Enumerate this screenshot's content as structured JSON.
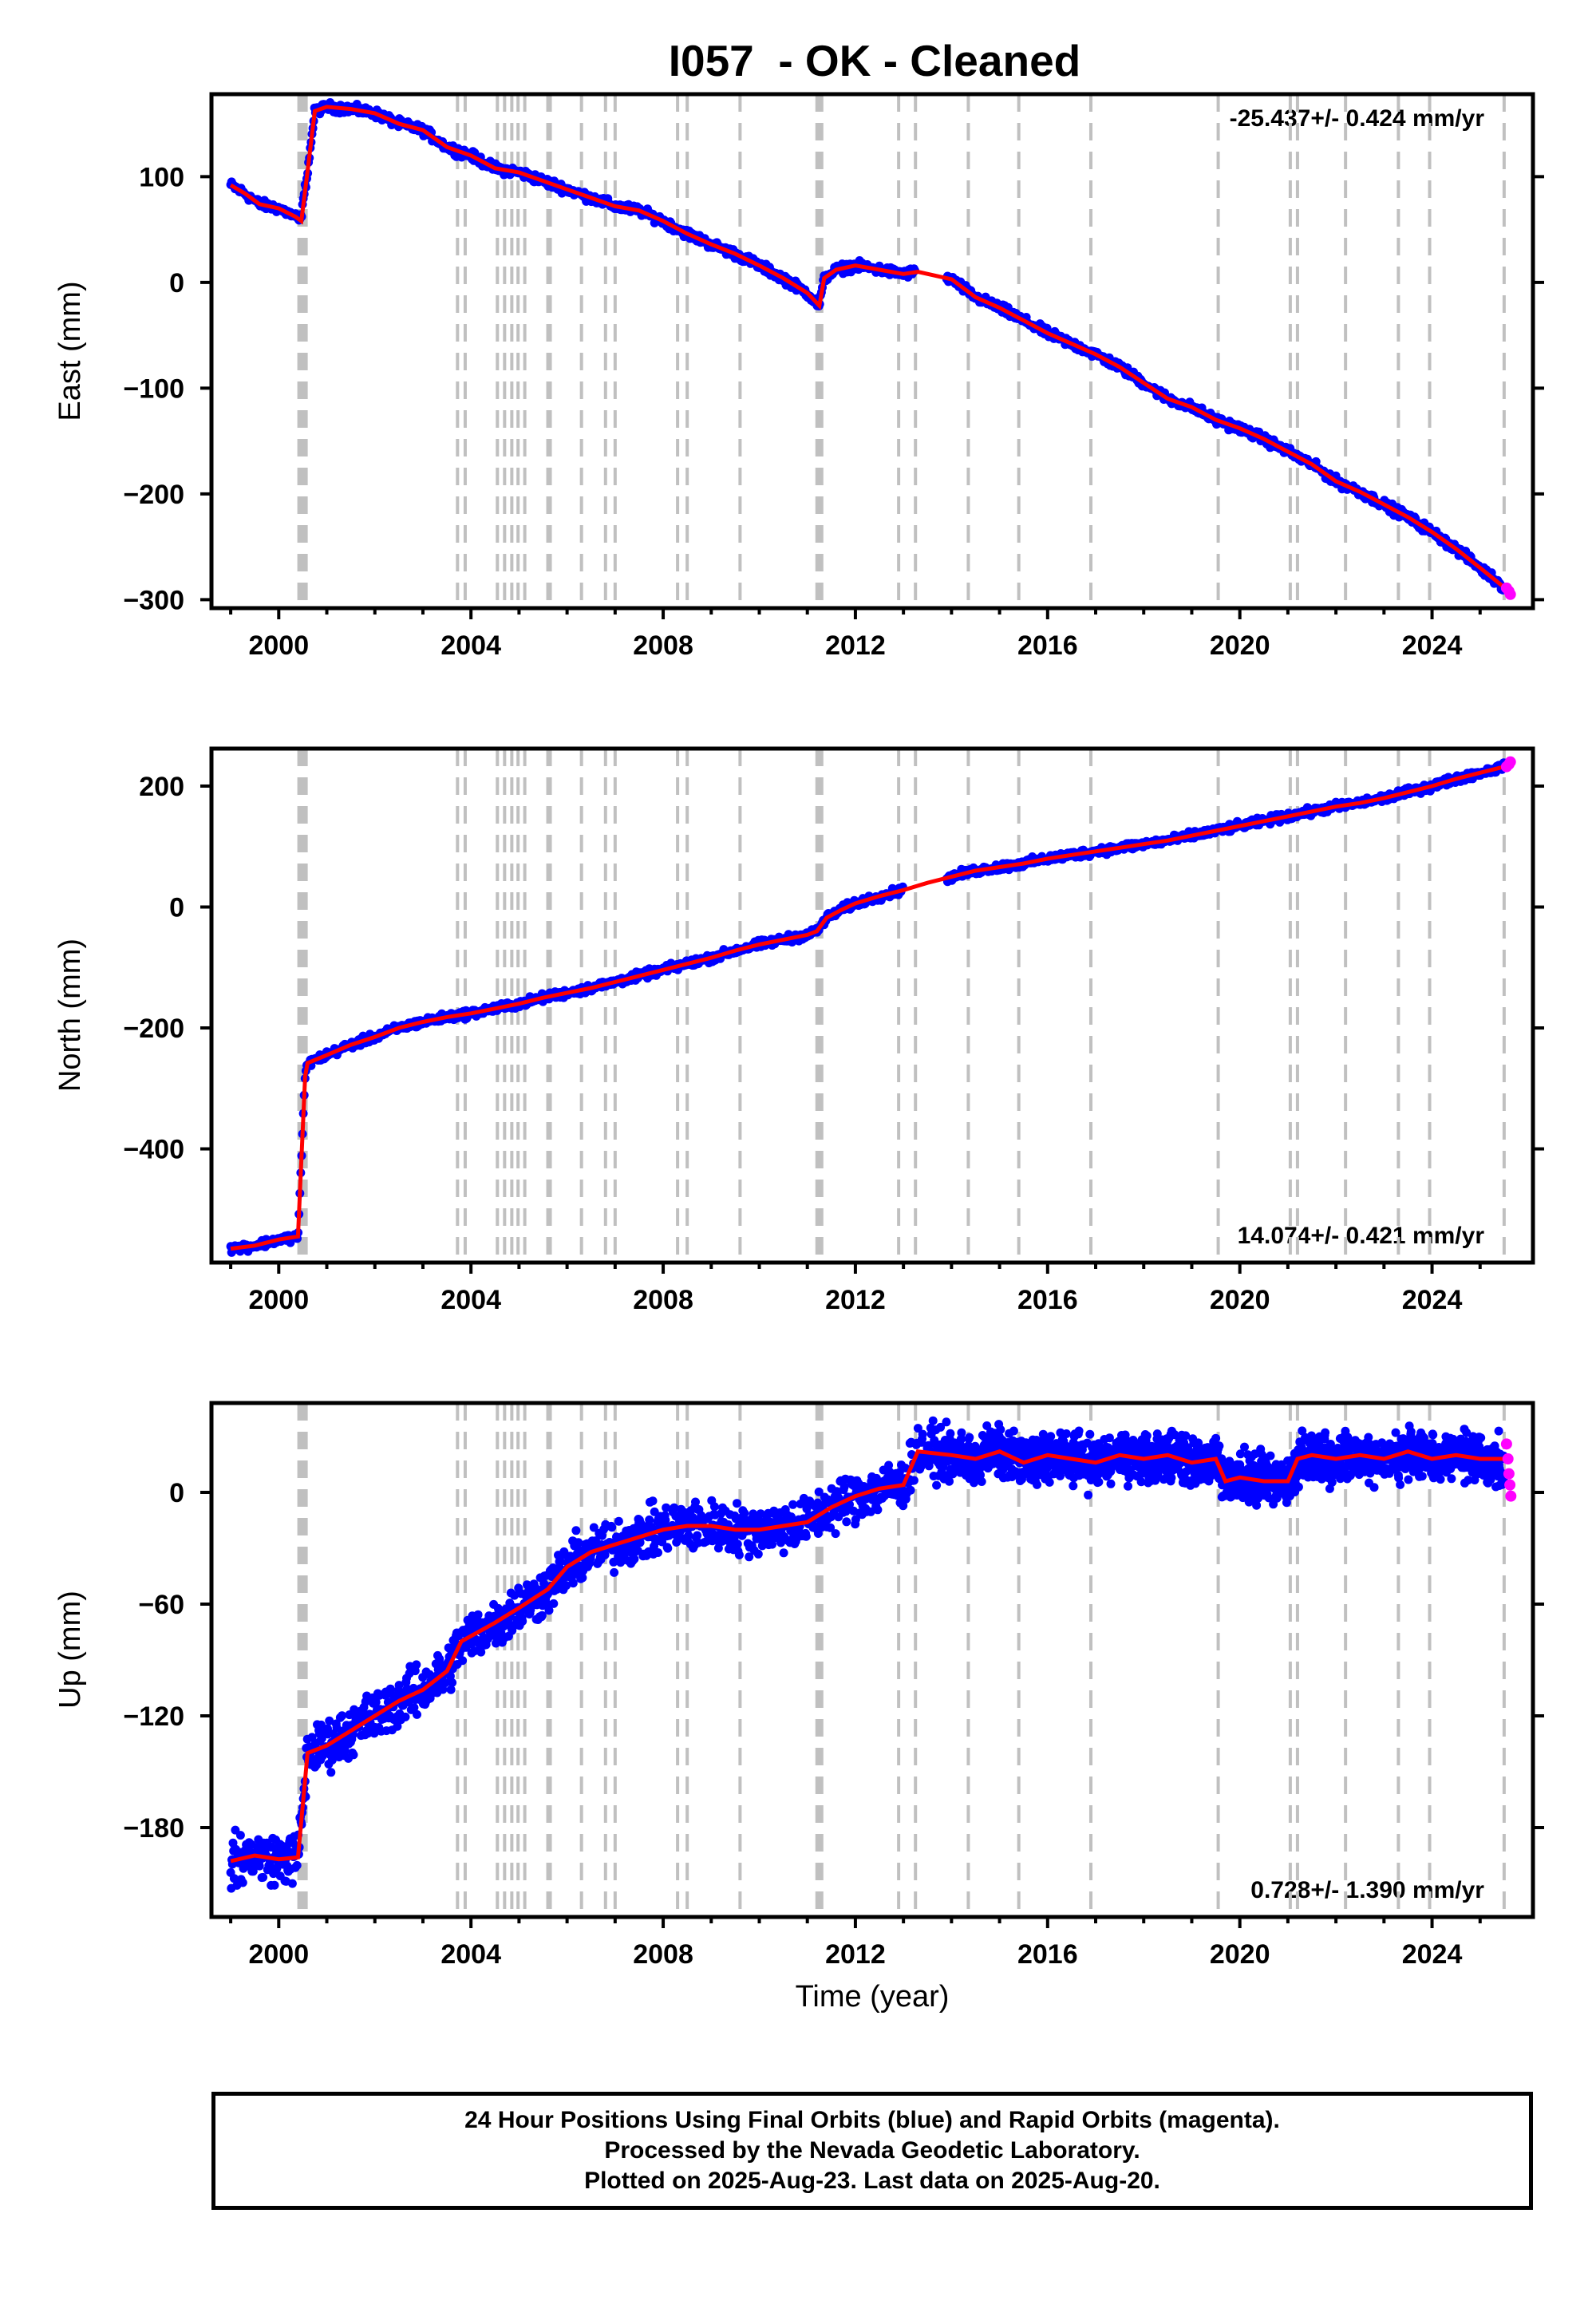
{
  "title": "I057  - OK - Cleaned",
  "footer": {
    "line1": "24 Hour Positions Using Final Orbits (blue) and Rapid Orbits (magenta).",
    "line2": "Processed by the Nevada Geodetic Laboratory.",
    "line3": "Plotted on 2025-Aug-23. Last data on 2025-Aug-20."
  },
  "colors": {
    "final_orbits": "#0000ff",
    "rapid_orbits": "#ff00ff",
    "model_fit": "#ff0000",
    "event_lines": "#c0c0c0"
  },
  "chart_data": [
    {
      "type": "scatter",
      "panel": "east",
      "ylabel": "East (mm)",
      "xlabel": "",
      "xlim": [
        1998.6,
        2026.1
      ],
      "ylim": [
        -308,
        178
      ],
      "yticks": [
        100,
        0,
        -100,
        -200,
        -300
      ],
      "xticks": [
        2000,
        2004,
        2008,
        2012,
        2016,
        2020,
        2024
      ],
      "rate_label": "-25.437+/- 0.424 mm/yr",
      "rate_position": "top-right",
      "event_lines": [
        2000.42,
        2000.47,
        2000.52,
        2000.57,
        2003.72,
        2003.88,
        2004.55,
        2004.7,
        2004.85,
        2004.98,
        2005.12,
        2005.6,
        2005.65,
        2006.3,
        2006.8,
        2007.0,
        2008.3,
        2008.5,
        2009.6,
        2011.2,
        2011.25,
        2011.3,
        2012.9,
        2013.25,
        2014.35,
        2015.4,
        2016.9,
        2019.55,
        2021.05,
        2021.2,
        2022.2,
        2023.3,
        2023.95,
        2025.5
      ],
      "series": [
        {
          "name": "Final Orbits",
          "x": [
            1999.0,
            1999.3,
            1999.6,
            2000.0,
            2000.35,
            2000.45,
            2000.6,
            2000.75,
            2001.0,
            2001.5,
            2002.0,
            2002.5,
            2003.0,
            2003.5,
            2004.0,
            2004.5,
            2005.0,
            2005.5,
            2006.0,
            2006.5,
            2007.0,
            2007.5,
            2008.0,
            2008.5,
            2009.0,
            2009.5,
            2010.0,
            2010.5,
            2011.0,
            2011.25,
            2011.35,
            2011.6,
            2012.0,
            2012.5,
            2013.0,
            2013.25
          ],
          "y": [
            92,
            84,
            74,
            70,
            62,
            58,
            105,
            162,
            166,
            164,
            160,
            150,
            144,
            128,
            120,
            108,
            104,
            96,
            88,
            80,
            72,
            68,
            58,
            46,
            36,
            27,
            16,
            4,
            -10,
            -22,
            4,
            12,
            16,
            12,
            8,
            10
          ]
        },
        {
          "name": "Model Fit",
          "x": [
            1999.0,
            1999.3,
            1999.6,
            2000.0,
            2000.35,
            2000.47,
            2000.6,
            2000.75,
            2001.0,
            2001.5,
            2002.0,
            2002.5,
            2003.0,
            2003.5,
            2004.0,
            2004.5,
            2005.0,
            2005.5,
            2006.0,
            2006.5,
            2007.0,
            2007.5,
            2008.0,
            2008.5,
            2009.0,
            2009.5,
            2010.0,
            2010.5,
            2011.0,
            2011.25,
            2011.35,
            2011.6,
            2012.0,
            2012.5,
            2013.0,
            2013.3,
            2014.0,
            2014.5,
            2015.0,
            2015.5,
            2016.0,
            2016.5,
            2017.0,
            2017.5,
            2018.0,
            2018.5,
            2019.0,
            2019.5,
            2020.0,
            2020.5,
            2021.0,
            2021.5,
            2022.0,
            2022.5,
            2023.0,
            2023.5,
            2024.0,
            2024.5,
            2025.0,
            2025.6
          ],
          "y": [
            92,
            84,
            74,
            70,
            62,
            58,
            105,
            162,
            166,
            164,
            160,
            150,
            144,
            128,
            120,
            108,
            104,
            96,
            88,
            80,
            72,
            68,
            58,
            46,
            36,
            27,
            16,
            4,
            -10,
            -22,
            4,
            12,
            16,
            12,
            8,
            10,
            3,
            -14,
            -24,
            -36,
            -48,
            -58,
            -68,
            -80,
            -95,
            -110,
            -118,
            -130,
            -138,
            -148,
            -160,
            -172,
            -188,
            -198,
            -210,
            -222,
            -236,
            -252,
            -270,
            -292
          ]
        },
        {
          "name": "Rapid Orbits",
          "x": [
            2025.55,
            2025.6,
            2025.63
          ],
          "y": [
            -289,
            -292,
            -295
          ]
        }
      ]
    },
    {
      "type": "scatter",
      "panel": "north",
      "ylabel": "North (mm)",
      "xlabel": "",
      "xlim": [
        1998.6,
        2026.1
      ],
      "ylim": [
        -588,
        262
      ],
      "yticks": [
        200,
        0,
        -200,
        -400
      ],
      "xticks": [
        2000,
        2004,
        2008,
        2012,
        2016,
        2020,
        2024
      ],
      "rate_label": "14.074+/- 0.421 mm/yr",
      "rate_position": "bottom-right",
      "event_lines": [
        2000.42,
        2000.47,
        2000.52,
        2000.57,
        2003.72,
        2003.88,
        2004.55,
        2004.7,
        2004.85,
        2004.98,
        2005.12,
        2005.6,
        2005.65,
        2006.3,
        2006.8,
        2007.0,
        2008.3,
        2008.5,
        2009.6,
        2011.2,
        2011.25,
        2011.3,
        2012.9,
        2013.25,
        2014.35,
        2015.4,
        2016.9,
        2019.55,
        2021.05,
        2021.2,
        2022.2,
        2023.3,
        2023.95,
        2025.5
      ],
      "series": [
        {
          "name": "Final Orbits",
          "x": [
            1999.0,
            1999.5,
            2000.0,
            2000.4,
            2000.47,
            2000.55,
            2000.6,
            2001.0,
            2001.5,
            2002.0,
            2002.5,
            2003.0,
            2003.5,
            2004.0,
            2004.5,
            2005.0,
            2005.5,
            2006.0,
            2006.5,
            2007.0,
            2007.5,
            2008.0,
            2008.5,
            2009.0,
            2009.5,
            2010.0,
            2010.5,
            2011.0,
            2011.2,
            2011.4,
            2011.7,
            2012.0,
            2012.5,
            2013.0
          ],
          "y": [
            -565,
            -560,
            -550,
            -545,
            -420,
            -280,
            -258,
            -245,
            -228,
            -215,
            -200,
            -190,
            -182,
            -176,
            -168,
            -160,
            -150,
            -142,
            -134,
            -124,
            -114,
            -104,
            -94,
            -84,
            -72,
            -62,
            -54,
            -46,
            -40,
            -18,
            -5,
            6,
            18,
            28
          ]
        },
        {
          "name": "Model Fit",
          "x": [
            1999.0,
            1999.5,
            2000.0,
            2000.4,
            2000.47,
            2000.55,
            2000.6,
            2001.0,
            2001.5,
            2002.0,
            2002.5,
            2003.0,
            2003.5,
            2004.0,
            2004.5,
            2005.0,
            2005.5,
            2006.0,
            2006.5,
            2007.0,
            2007.5,
            2008.0,
            2008.5,
            2009.0,
            2009.5,
            2010.0,
            2010.5,
            2011.0,
            2011.2,
            2011.4,
            2011.7,
            2012.0,
            2012.5,
            2013.0,
            2013.5,
            2014.0,
            2014.5,
            2015.0,
            2015.5,
            2016.0,
            2016.5,
            2017.0,
            2017.5,
            2018.0,
            2018.5,
            2019.0,
            2019.5,
            2020.0,
            2020.5,
            2021.0,
            2021.5,
            2022.0,
            2022.5,
            2023.0,
            2023.5,
            2024.0,
            2024.5,
            2025.0,
            2025.6
          ],
          "y": [
            -565,
            -560,
            -550,
            -545,
            -420,
            -280,
            -258,
            -245,
            -228,
            -215,
            -200,
            -190,
            -182,
            -176,
            -168,
            -160,
            -150,
            -142,
            -134,
            -124,
            -114,
            -104,
            -94,
            -84,
            -72,
            -62,
            -54,
            -46,
            -40,
            -18,
            -5,
            6,
            18,
            28,
            40,
            50,
            60,
            66,
            72,
            80,
            86,
            92,
            98,
            104,
            110,
            118,
            126,
            134,
            142,
            150,
            158,
            166,
            172,
            180,
            190,
            200,
            212,
            222,
            234
          ]
        },
        {
          "name": "Rapid Orbits",
          "x": [
            2025.55,
            2025.6,
            2025.63
          ],
          "y": [
            232,
            236,
            240
          ]
        }
      ]
    },
    {
      "type": "scatter",
      "panel": "up",
      "ylabel": "Up (mm)",
      "xlabel": "Time (year)",
      "xlim": [
        1998.6,
        2026.1
      ],
      "ylim": [
        -228,
        48
      ],
      "yticks": [
        0,
        -60,
        -120,
        -180
      ],
      "xticks": [
        2000,
        2004,
        2008,
        2012,
        2016,
        2020,
        2024
      ],
      "rate_label": "0.728+/- 1.390 mm/yr",
      "rate_position": "bottom-right",
      "event_lines": [
        2000.42,
        2000.47,
        2000.52,
        2000.57,
        2003.72,
        2003.88,
        2004.55,
        2004.7,
        2004.85,
        2004.98,
        2005.12,
        2005.6,
        2005.65,
        2006.3,
        2006.8,
        2007.0,
        2008.3,
        2008.5,
        2009.6,
        2011.2,
        2011.25,
        2011.3,
        2012.9,
        2013.25,
        2014.35,
        2015.4,
        2016.9,
        2019.55,
        2021.05,
        2021.2,
        2022.2,
        2023.3,
        2023.95,
        2025.5
      ],
      "series": [
        {
          "name": "Final Orbits",
          "x": [
            1999.0,
            1999.5,
            2000.0,
            2000.4,
            2000.6,
            2001.0,
            2001.5,
            2002.0,
            2002.5,
            2003.0,
            2003.5,
            2003.8,
            2004.5,
            2005.0,
            2005.6,
            2006.0,
            2006.5,
            2007.0,
            2007.5,
            2008.0,
            2008.5,
            2009.0,
            2009.5,
            2010.0,
            2010.5,
            2011.0,
            2011.5,
            2012.0,
            2012.5,
            2013.0,
            2013.3,
            2014.0,
            2014.5,
            2015.0,
            2015.5,
            2016.0,
            2016.5,
            2017.0,
            2017.5,
            2018.0,
            2018.5,
            2019.0,
            2019.5,
            2019.7,
            2020.0,
            2020.5,
            2021.0,
            2021.2,
            2021.5,
            2022.0,
            2022.5,
            2023.0,
            2023.5,
            2024.0,
            2024.5,
            2025.0,
            2025.4
          ],
          "y": [
            -198,
            -195,
            -197,
            -196,
            -140,
            -136,
            -128,
            -120,
            -112,
            -106,
            -96,
            -80,
            -70,
            -62,
            -52,
            -40,
            -32,
            -28,
            -24,
            -20,
            -18,
            -18,
            -20,
            -20,
            -18,
            -16,
            -8,
            -2,
            2,
            4,
            22,
            20,
            18,
            22,
            16,
            20,
            18,
            16,
            20,
            18,
            20,
            16,
            18,
            6,
            8,
            6,
            6,
            18,
            20,
            18,
            20,
            18,
            22,
            18,
            20,
            18,
            14
          ]
        },
        {
          "name": "Model Fit",
          "x": [
            1999.0,
            1999.5,
            2000.0,
            2000.4,
            2000.6,
            2001.0,
            2001.5,
            2002.0,
            2002.5,
            2003.0,
            2003.5,
            2003.8,
            2004.5,
            2005.0,
            2005.6,
            2006.0,
            2006.5,
            2007.0,
            2007.5,
            2008.0,
            2008.5,
            2009.0,
            2009.5,
            2010.0,
            2010.5,
            2011.0,
            2011.5,
            2012.0,
            2012.5,
            2013.0,
            2013.3,
            2014.0,
            2014.5,
            2015.0,
            2015.5,
            2016.0,
            2016.5,
            2017.0,
            2017.5,
            2018.0,
            2018.5,
            2019.0,
            2019.5,
            2019.7,
            2020.0,
            2020.5,
            2021.0,
            2021.2,
            2021.5,
            2022.0,
            2022.5,
            2023.0,
            2023.5,
            2024.0,
            2024.5,
            2025.0,
            2025.6
          ],
          "y": [
            -198,
            -195,
            -197,
            -196,
            -140,
            -136,
            -128,
            -120,
            -112,
            -106,
            -96,
            -80,
            -70,
            -62,
            -52,
            -40,
            -32,
            -28,
            -24,
            -20,
            -18,
            -18,
            -20,
            -20,
            -18,
            -16,
            -8,
            -2,
            2,
            4,
            22,
            20,
            18,
            22,
            16,
            20,
            18,
            16,
            20,
            18,
            20,
            16,
            18,
            6,
            8,
            6,
            6,
            18,
            20,
            18,
            20,
            18,
            22,
            18,
            20,
            18,
            18
          ]
        },
        {
          "name": "Rapid Orbits",
          "x": [
            2025.55,
            2025.58,
            2025.6,
            2025.62,
            2025.64
          ],
          "y": [
            26,
            18,
            10,
            4,
            -2
          ]
        }
      ]
    }
  ]
}
